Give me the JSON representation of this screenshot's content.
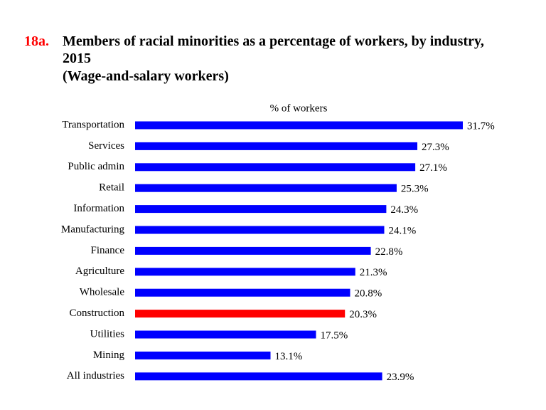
{
  "chart_data": {
    "type": "bar",
    "orientation": "horizontal",
    "label": "18a.",
    "title": "Members of racial minorities as a percentage of workers, by industry, 2015",
    "subtitle": "(Wage-and-salary workers)",
    "axis_label": "% of workers",
    "categories": [
      "Transportation",
      "Services",
      "Public admin",
      "Retail",
      "Information",
      "Manufacturing",
      "Finance",
      "Agriculture",
      "Wholesale",
      "Construction",
      "Utilities",
      "Mining",
      "All industries"
    ],
    "values": [
      31.7,
      27.3,
      27.1,
      25.3,
      24.3,
      24.1,
      22.8,
      21.3,
      20.8,
      20.3,
      17.5,
      13.1,
      23.9
    ],
    "value_labels": [
      "31.7%",
      "27.3%",
      "27.1%",
      "25.3%",
      "24.3%",
      "24.1%",
      "22.8%",
      "21.3%",
      "20.8%",
      "20.3%",
      "17.5%",
      "13.1%",
      "23.9%"
    ],
    "colors": [
      "#0000ff",
      "#0000ff",
      "#0000ff",
      "#0000ff",
      "#0000ff",
      "#0000ff",
      "#0000ff",
      "#0000ff",
      "#0000ff",
      "#ff0000",
      "#0000ff",
      "#0000ff",
      "#0000ff"
    ],
    "label_color": "#ff0000"
  }
}
